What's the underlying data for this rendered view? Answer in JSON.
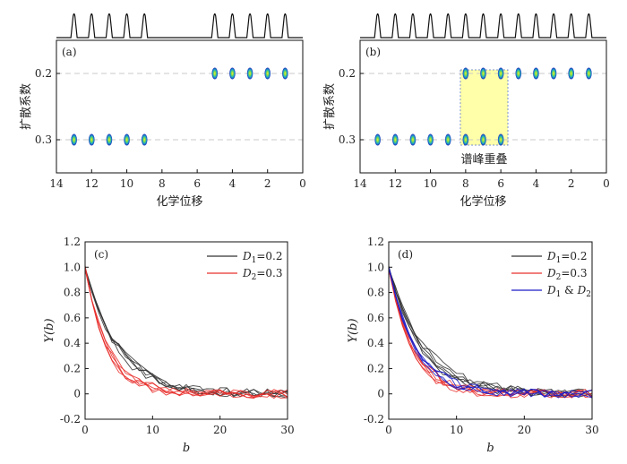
{
  "chart_data": [
    {
      "type": "scatter",
      "panel_label": "(a)",
      "xlabel": "化学位移",
      "ylabel": "扩散系数",
      "xlim": [
        14,
        0
      ],
      "x_reversed": true,
      "xticks": [
        "14",
        "12",
        "10",
        "8",
        "6",
        "4",
        "2",
        "0"
      ],
      "yticks": [
        "0.2",
        "0.3"
      ],
      "grid_lines_y": [
        0.2,
        0.3
      ],
      "spectrum_peaks": [
        13,
        12,
        11,
        10,
        9,
        5,
        4,
        3,
        2,
        1
      ],
      "series": [
        {
          "x": [
            13,
            12,
            11,
            10,
            9
          ],
          "y": [
            0.3,
            0.3,
            0.3,
            0.3,
            0.3
          ]
        },
        {
          "x": [
            5,
            4,
            3,
            2,
            1
          ],
          "y": [
            0.2,
            0.2,
            0.2,
            0.2,
            0.2
          ]
        }
      ]
    },
    {
      "type": "scatter",
      "panel_label": "(b)",
      "xlabel": "化学位移",
      "ylabel": "扩散系数",
      "xlim": [
        14,
        0
      ],
      "x_reversed": true,
      "xticks": [
        "14",
        "12",
        "10",
        "8",
        "6",
        "4",
        "2",
        "0"
      ],
      "yticks": [
        "0.2",
        "0.3"
      ],
      "grid_lines_y": [
        0.2,
        0.3
      ],
      "spectrum_peaks": [
        13,
        12,
        11,
        10,
        9,
        8,
        7,
        6,
        5,
        4,
        3,
        2,
        1
      ],
      "annotation": "谱峰重叠",
      "overlap_region_x": [
        8.3,
        5.6
      ],
      "series": [
        {
          "x": [
            13,
            12,
            11,
            10,
            9,
            8,
            7,
            6
          ],
          "y": [
            0.3,
            0.3,
            0.3,
            0.3,
            0.3,
            0.3,
            0.3,
            0.3
          ]
        },
        {
          "x": [
            8,
            7,
            6,
            5,
            4,
            3,
            2,
            1
          ],
          "y": [
            0.2,
            0.2,
            0.2,
            0.2,
            0.2,
            0.2,
            0.2,
            0.2
          ]
        }
      ]
    },
    {
      "type": "line",
      "panel_label": "(c)",
      "xlabel": "b",
      "ylabel": "Y(b)",
      "xlim": [
        0,
        30
      ],
      "ylim": [
        -0.2,
        1.2
      ],
      "xticks": [
        "0",
        "10",
        "20",
        "30"
      ],
      "yticks": [
        "-0.2",
        "0",
        "0.2",
        "0.4",
        "0.6",
        "0.8",
        "1.0",
        "1.2"
      ],
      "legend_position": "top-right",
      "series": [
        {
          "name": "D1=0.2",
          "legend": {
            "sym": "D",
            "sub": "1",
            "rest": "=0.2"
          },
          "color": "#333333",
          "decay": 0.2,
          "count": 5
        },
        {
          "name": "D2=0.3",
          "legend": {
            "sym": "D",
            "sub": "2",
            "rest": "=0.3"
          },
          "color": "#e8302c",
          "decay": 0.3,
          "count": 5
        }
      ]
    },
    {
      "type": "line",
      "panel_label": "(d)",
      "xlabel": "b",
      "ylabel": "Y(b)",
      "xlim": [
        0,
        30
      ],
      "ylim": [
        -0.2,
        1.2
      ],
      "xticks": [
        "0",
        "10",
        "20",
        "30"
      ],
      "yticks": [
        "-0.2",
        "0",
        "0.2",
        "0.4",
        "0.6",
        "0.8",
        "1.0",
        "1.2"
      ],
      "legend_position": "top-right",
      "series": [
        {
          "name": "D1=0.2",
          "legend": {
            "sym": "D",
            "sub": "1",
            "rest": "=0.2"
          },
          "color": "#333333",
          "decay": 0.2,
          "count": 5
        },
        {
          "name": "D2=0.3",
          "legend": {
            "sym": "D",
            "sub": "2",
            "rest": "=0.3"
          },
          "color": "#e8302c",
          "decay": 0.3,
          "count": 5
        },
        {
          "name": "D1 & D2",
          "legend": {
            "sym": "D",
            "sub": "1",
            "rest": " & ",
            "sym2": "D",
            "sub2": "2"
          },
          "color": "#1c1cc8",
          "decay": 0.25,
          "count": 4
        }
      ]
    }
  ]
}
